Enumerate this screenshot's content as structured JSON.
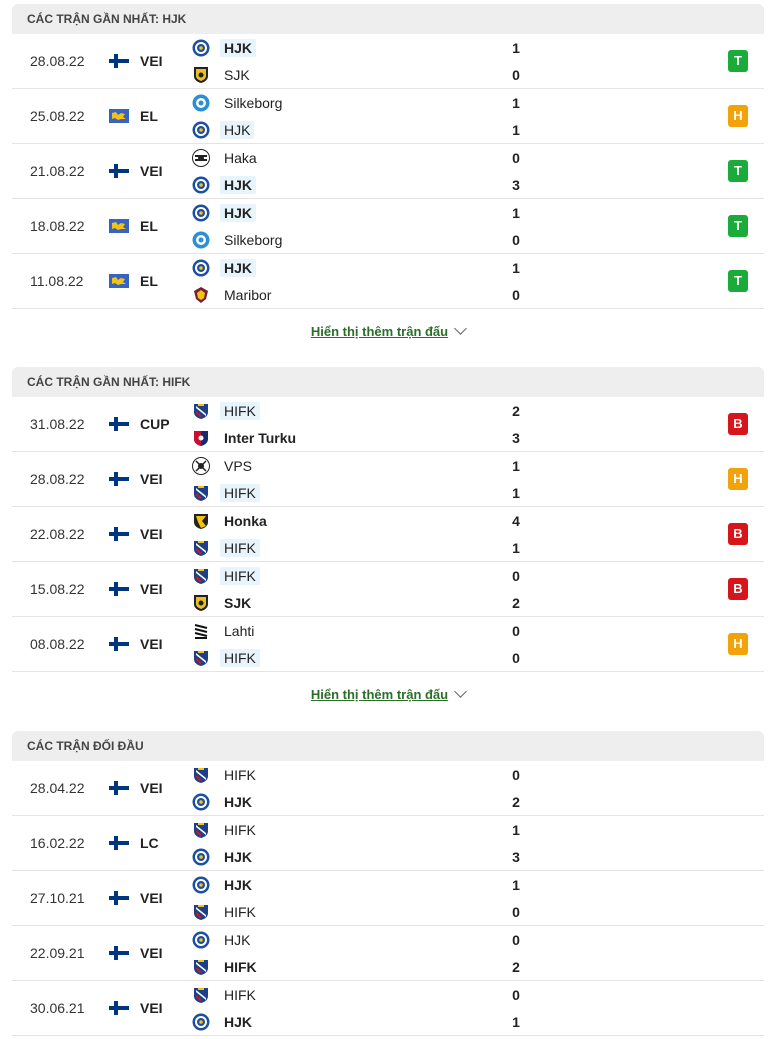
{
  "sections": [
    {
      "title": "Các trận gần nhất: HJK",
      "more_label": "Hiển thị thêm trận đấu",
      "matches": [
        {
          "date": "28.08.22",
          "flag": "fi",
          "league": "VEI",
          "home": {
            "name": "HJK",
            "logo": "hjk",
            "bold": true,
            "hl": true
          },
          "away": {
            "name": "SJK",
            "logo": "sjk",
            "bold": false,
            "hl": false
          },
          "score_home": "1",
          "score_away": "0",
          "result": "T"
        },
        {
          "date": "25.08.22",
          "flag": "eu",
          "league": "EL",
          "home": {
            "name": "Silkeborg",
            "logo": "silkeborg",
            "bold": false,
            "hl": false
          },
          "away": {
            "name": "HJK",
            "logo": "hjk",
            "bold": false,
            "hl": true
          },
          "score_home": "1",
          "score_away": "1",
          "result": "H"
        },
        {
          "date": "21.08.22",
          "flag": "fi",
          "league": "VEI",
          "home": {
            "name": "Haka",
            "logo": "haka",
            "bold": false,
            "hl": false
          },
          "away": {
            "name": "HJK",
            "logo": "hjk",
            "bold": true,
            "hl": true
          },
          "score_home": "0",
          "score_away": "3",
          "result": "T"
        },
        {
          "date": "18.08.22",
          "flag": "eu",
          "league": "EL",
          "home": {
            "name": "HJK",
            "logo": "hjk",
            "bold": true,
            "hl": true
          },
          "away": {
            "name": "Silkeborg",
            "logo": "silkeborg",
            "bold": false,
            "hl": false
          },
          "score_home": "1",
          "score_away": "0",
          "result": "T"
        },
        {
          "date": "11.08.22",
          "flag": "eu",
          "league": "EL",
          "home": {
            "name": "HJK",
            "logo": "hjk",
            "bold": true,
            "hl": true
          },
          "away": {
            "name": "Maribor",
            "logo": "maribor",
            "bold": false,
            "hl": false
          },
          "score_home": "1",
          "score_away": "0",
          "result": "T"
        }
      ]
    },
    {
      "title": "Các trận gần nhất: HIFK",
      "more_label": "Hiển thị thêm trận đấu",
      "matches": [
        {
          "date": "31.08.22",
          "flag": "fi",
          "league": "CUP",
          "home": {
            "name": "HIFK",
            "logo": "hifk",
            "bold": false,
            "hl": true
          },
          "away": {
            "name": "Inter Turku",
            "logo": "inter",
            "bold": true,
            "hl": false
          },
          "score_home": "2",
          "score_away": "3",
          "result": "B"
        },
        {
          "date": "28.08.22",
          "flag": "fi",
          "league": "VEI",
          "home": {
            "name": "VPS",
            "logo": "vps",
            "bold": false,
            "hl": false
          },
          "away": {
            "name": "HIFK",
            "logo": "hifk",
            "bold": false,
            "hl": true
          },
          "score_home": "1",
          "score_away": "1",
          "result": "H"
        },
        {
          "date": "22.08.22",
          "flag": "fi",
          "league": "VEI",
          "home": {
            "name": "Honka",
            "logo": "honka",
            "bold": true,
            "hl": false
          },
          "away": {
            "name": "HIFK",
            "logo": "hifk",
            "bold": false,
            "hl": true
          },
          "score_home": "4",
          "score_away": "1",
          "result": "B"
        },
        {
          "date": "15.08.22",
          "flag": "fi",
          "league": "VEI",
          "home": {
            "name": "HIFK",
            "logo": "hifk",
            "bold": false,
            "hl": true
          },
          "away": {
            "name": "SJK",
            "logo": "sjk",
            "bold": true,
            "hl": false
          },
          "score_home": "0",
          "score_away": "2",
          "result": "B"
        },
        {
          "date": "08.08.22",
          "flag": "fi",
          "league": "VEI",
          "home": {
            "name": "Lahti",
            "logo": "lahti",
            "bold": false,
            "hl": false
          },
          "away": {
            "name": "HIFK",
            "logo": "hifk",
            "bold": false,
            "hl": true
          },
          "score_home": "0",
          "score_away": "0",
          "result": "H"
        }
      ]
    },
    {
      "title": "Các trận đối đầu",
      "more_label": "",
      "matches": [
        {
          "date": "28.04.22",
          "flag": "fi",
          "league": "VEI",
          "home": {
            "name": "HIFK",
            "logo": "hifk",
            "bold": false,
            "hl": false
          },
          "away": {
            "name": "HJK",
            "logo": "hjk",
            "bold": true,
            "hl": false
          },
          "score_home": "0",
          "score_away": "2",
          "result": ""
        },
        {
          "date": "16.02.22",
          "flag": "fi",
          "league": "LC",
          "home": {
            "name": "HIFK",
            "logo": "hifk",
            "bold": false,
            "hl": false
          },
          "away": {
            "name": "HJK",
            "logo": "hjk",
            "bold": true,
            "hl": false
          },
          "score_home": "1",
          "score_away": "3",
          "result": ""
        },
        {
          "date": "27.10.21",
          "flag": "fi",
          "league": "VEI",
          "home": {
            "name": "HJK",
            "logo": "hjk",
            "bold": true,
            "hl": false
          },
          "away": {
            "name": "HIFK",
            "logo": "hifk",
            "bold": false,
            "hl": false
          },
          "score_home": "1",
          "score_away": "0",
          "result": ""
        },
        {
          "date": "22.09.21",
          "flag": "fi",
          "league": "VEI",
          "home": {
            "name": "HJK",
            "logo": "hjk",
            "bold": false,
            "hl": false
          },
          "away": {
            "name": "HIFK",
            "logo": "hifk",
            "bold": true,
            "hl": false
          },
          "score_home": "0",
          "score_away": "2",
          "result": ""
        },
        {
          "date": "30.06.21",
          "flag": "fi",
          "league": "VEI",
          "home": {
            "name": "HIFK",
            "logo": "hifk",
            "bold": false,
            "hl": false
          },
          "away": {
            "name": "HJK",
            "logo": "hjk",
            "bold": true,
            "hl": false
          },
          "score_home": "0",
          "score_away": "1",
          "result": ""
        }
      ]
    }
  ],
  "colors": {
    "win": "#1bab3a",
    "draw": "#f2a30a",
    "loss": "#d7161c",
    "link": "#2a6e2a",
    "highlight": "#e8f4fc"
  }
}
